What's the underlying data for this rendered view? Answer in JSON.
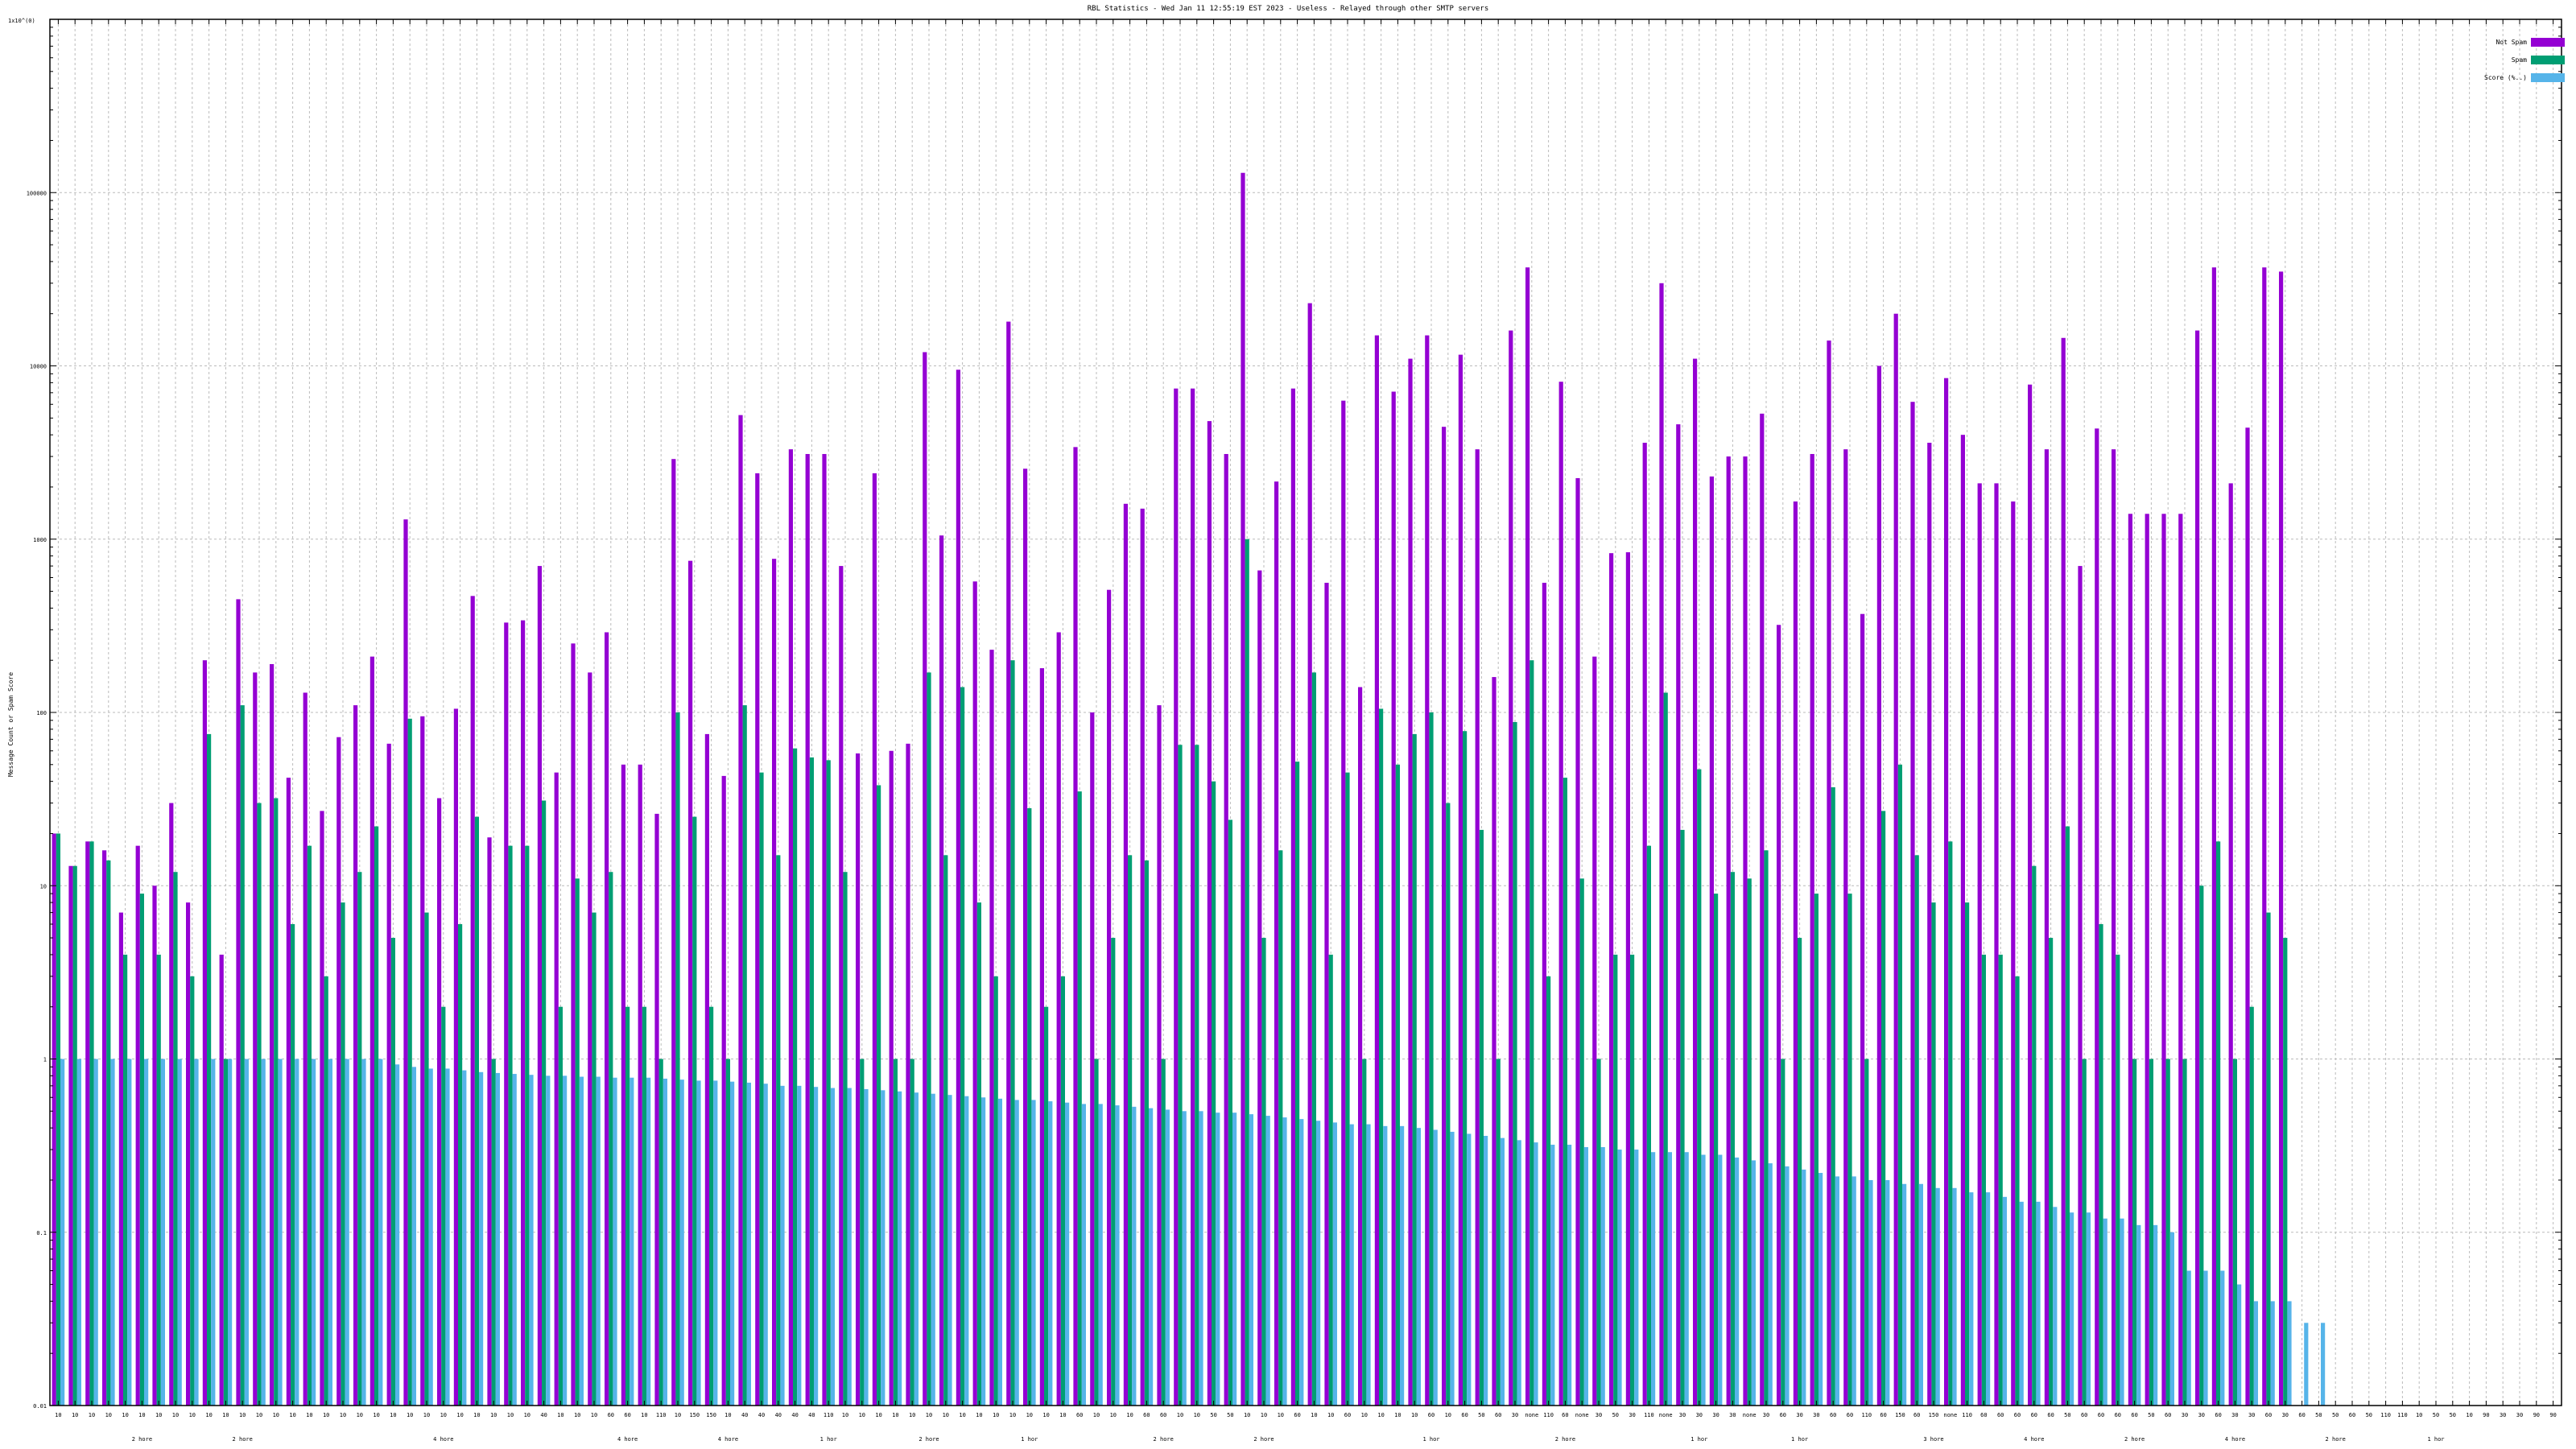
{
  "chart_data": {
    "type": "bar",
    "log_scale_y": true,
    "grid": true,
    "legend_placement": "top-right",
    "title": "RBL Statistics - Wed Jan 11 12:55:19 EST 2023 - Useless - Relayed through other SMTP servers",
    "ylabel": "Message Count or Spam Score",
    "y_top_label": "1x10^(0)",
    "ylim": [
      0.01,
      1000000
    ],
    "yticks": [
      {
        "v": 0.01,
        "label": "0.01"
      },
      {
        "v": 0.1,
        "label": "0.1"
      },
      {
        "v": 1,
        "label": "1"
      },
      {
        "v": 10,
        "label": "10"
      },
      {
        "v": 100,
        "label": "100"
      },
      {
        "v": 1000,
        "label": "1000"
      },
      {
        "v": 10000,
        "label": "10000"
      },
      {
        "v": 100000,
        "label": "100000"
      }
    ],
    "colors": {
      "notspam": "#9400d3",
      "spam": "#009e73",
      "score": "#56b4e9"
    },
    "series": [
      {
        "name": "Not Spam",
        "key": "notspam"
      },
      {
        "name": "Spam",
        "key": "spam"
      },
      {
        "name": "Score (%..)",
        "key": "score"
      }
    ],
    "categories": [
      "10",
      "10",
      "10",
      "10",
      "10",
      "10",
      "10",
      "10",
      "10",
      "10",
      "10",
      "10",
      "10",
      "10",
      "10",
      "10",
      "10",
      "10",
      "10",
      "10",
      "10",
      "10",
      "10",
      "10",
      "10",
      "10",
      "10",
      "10",
      "10",
      "40",
      "10",
      "10",
      "10",
      "60",
      "60",
      "10",
      "110",
      "10",
      "150",
      "150",
      "10",
      "40",
      "40",
      "40",
      "40",
      "40",
      "110",
      "10",
      "10",
      "10",
      "10",
      "10",
      "10",
      "10",
      "10",
      "10",
      "10",
      "10",
      "10",
      "10",
      "10",
      "60",
      "10",
      "10",
      "10",
      "60",
      "60",
      "10",
      "10",
      "50",
      "50",
      "10",
      "10",
      "10",
      "60",
      "10",
      "10",
      "60",
      "10",
      "10",
      "10",
      "10",
      "60",
      "10",
      "60",
      "50",
      "60",
      "30",
      "none",
      "110",
      "60",
      "none",
      "30",
      "50",
      "30",
      "110",
      "none",
      "30",
      "30",
      "30",
      "30",
      "none",
      "30",
      "60",
      "30",
      "30",
      "60",
      "60",
      "110",
      "60",
      "150",
      "60",
      "150",
      "none",
      "110",
      "60",
      "60",
      "60",
      "60",
      "60",
      "50",
      "60",
      "60",
      "60",
      "60",
      "50",
      "60",
      "30",
      "30",
      "60",
      "30",
      "30",
      "60",
      "30",
      "60",
      "50",
      "50",
      "60",
      "50",
      "110",
      "110",
      "10",
      "50",
      "50",
      "10",
      "90",
      "30",
      "30",
      "90",
      "90"
    ],
    "x_subtitles": [
      {
        "i": 5,
        "text": "2 hore"
      },
      {
        "i": 11,
        "text": "2 hore"
      },
      {
        "i": 23,
        "text": "4 hore"
      },
      {
        "i": 34,
        "text": "4 hore"
      },
      {
        "i": 40,
        "text": "4 hore"
      },
      {
        "i": 46,
        "text": "1 hor"
      },
      {
        "i": 52,
        "text": "2 hore"
      },
      {
        "i": 58,
        "text": "1 hor"
      },
      {
        "i": 66,
        "text": "2 hore"
      },
      {
        "i": 72,
        "text": "2 hore"
      },
      {
        "i": 82,
        "text": "1 hor"
      },
      {
        "i": 90,
        "text": "2 hore"
      },
      {
        "i": 98,
        "text": "1 hor"
      },
      {
        "i": 104,
        "text": "1 hor"
      },
      {
        "i": 112,
        "text": "3 hore"
      },
      {
        "i": 118,
        "text": "4 hore"
      },
      {
        "i": 124,
        "text": "2 hore"
      },
      {
        "i": 130,
        "text": "4 hore"
      },
      {
        "i": 136,
        "text": "2 hore"
      },
      {
        "i": 142,
        "text": "1 hor"
      }
    ],
    "notspam": [
      20,
      13,
      18,
      16,
      7,
      17,
      10,
      30,
      8,
      200,
      4,
      450,
      170,
      190,
      42,
      130,
      27,
      72,
      110,
      210,
      66,
      1300,
      95,
      32,
      105,
      470,
      19,
      330,
      340,
      700,
      45,
      250,
      170,
      290,
      50,
      50,
      26,
      2900,
      750,
      75,
      43,
      5200,
      2400,
      770,
      3300,
      3100,
      3100,
      700,
      58,
      2400,
      60,
      66,
      12000,
      1050,
      9500,
      570,
      230,
      18000,
      2550,
      180,
      290,
      3400,
      100,
      510,
      1600,
      1500,
      110,
      7400,
      7400,
      4800,
      3100,
      130000,
      660,
      2150,
      7400,
      23000,
      560,
      6300,
      140,
      15000,
      7100,
      11000,
      15000,
      4450,
      11600,
      3300,
      160,
      16000,
      37000,
      560,
      8100,
      2250,
      210,
      830,
      840,
      3600,
      30000,
      4600,
      11000,
      2300,
      3000,
      3000,
      5300,
      320,
      1650,
      3100,
      14000,
      3300,
      370,
      10000,
      20000,
      6200,
      3600,
      8500,
      4000,
      2100,
      2100,
      1650,
      7800,
      3300,
      14500,
      700,
      4350,
      3300,
      1400,
      1400,
      1400,
      1400,
      16000,
      37000,
      2100,
      4400,
      37000,
      35000
    ],
    "spam": [
      20,
      13,
      18,
      14,
      4,
      9,
      4,
      12,
      3,
      75,
      1,
      110,
      30,
      32,
      6,
      17,
      3,
      8,
      12,
      22,
      5,
      92,
      7,
      2,
      6,
      25,
      1,
      17,
      17,
      31,
      2,
      11,
      7,
      12,
      2,
      2,
      1,
      100,
      25,
      2,
      1,
      110,
      45,
      15,
      62,
      55,
      53,
      12,
      1,
      38,
      1,
      1,
      170,
      15,
      140,
      8,
      3,
      200,
      28,
      2,
      3,
      35,
      1,
      5,
      15,
      14,
      1,
      65,
      65,
      40,
      24,
      1000,
      5,
      16,
      52,
      170,
      4,
      45,
      1,
      105,
      50,
      75,
      100,
      30,
      78,
      21,
      1,
      88,
      200,
      3,
      42,
      11,
      1,
      4,
      4,
      17,
      130,
      21,
      47,
      9,
      12,
      11,
      16,
      1,
      5,
      9,
      37,
      9,
      1,
      27,
      50,
      15,
      8,
      18,
      8,
      4,
      4,
      3,
      13,
      5,
      22,
      1,
      6,
      4,
      1,
      1,
      1,
      1,
      10,
      18,
      1,
      2,
      7,
      5
    ],
    "score": [
      1,
      1,
      1,
      1,
      1,
      1,
      1,
      1,
      1,
      1,
      1,
      1,
      1,
      1,
      1,
      1,
      1,
      1,
      1,
      1,
      0.93,
      0.9,
      0.88,
      0.88,
      0.86,
      0.84,
      0.83,
      0.82,
      0.81,
      0.8,
      0.8,
      0.79,
      0.79,
      0.78,
      0.78,
      0.78,
      0.77,
      0.76,
      0.75,
      0.75,
      0.74,
      0.73,
      0.72,
      0.7,
      0.7,
      0.69,
      0.68,
      0.68,
      0.67,
      0.66,
      0.65,
      0.64,
      0.63,
      0.62,
      0.61,
      0.6,
      0.59,
      0.58,
      0.58,
      0.57,
      0.56,
      0.55,
      0.55,
      0.54,
      0.53,
      0.52,
      0.51,
      0.5,
      0.5,
      0.49,
      0.49,
      0.48,
      0.47,
      0.46,
      0.45,
      0.44,
      0.43,
      0.42,
      0.42,
      0.41,
      0.41,
      0.4,
      0.39,
      0.38,
      0.37,
      0.36,
      0.35,
      0.34,
      0.33,
      0.32,
      0.32,
      0.31,
      0.31,
      0.3,
      0.3,
      0.29,
      0.29,
      0.29,
      0.28,
      0.28,
      0.27,
      0.26,
      0.25,
      0.24,
      0.23,
      0.22,
      0.21,
      0.21,
      0.2,
      0.2,
      0.19,
      0.19,
      0.18,
      0.18,
      0.17,
      0.17,
      0.16,
      0.15,
      0.15,
      0.14,
      0.13,
      0.13,
      0.12,
      0.12,
      0.11,
      0.11,
      0.1,
      0.06,
      0.06,
      0.06,
      0.05,
      0.04,
      0.04,
      0.04,
      0.03,
      0.03
    ]
  }
}
